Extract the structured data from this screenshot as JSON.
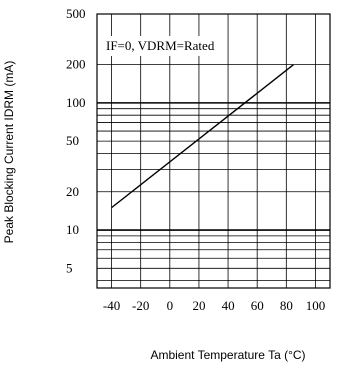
{
  "chart_data": {
    "type": "line",
    "y_scale": "log",
    "grid": true,
    "xlabel": "Ambient Temperature Ta (°C)",
    "ylabel": "Peak Blocking Current IDRM (mA)",
    "xlim": [
      -50,
      110
    ],
    "ylim": [
      3.5,
      500
    ],
    "x_ticks": [
      -40,
      -20,
      0,
      20,
      40,
      60,
      80,
      100
    ],
    "x_tick_labels": [
      "-40",
      "-20",
      "0",
      "20",
      "40",
      "60",
      "80",
      "100"
    ],
    "y_labeled_ticks": [
      5,
      10,
      20,
      50,
      100,
      200,
      500
    ],
    "y_tick_labels": [
      "5",
      "10",
      "20",
      "50",
      "100",
      "200",
      "500"
    ],
    "y_minor_lines": [
      4,
      6,
      7,
      8,
      9,
      30,
      40,
      60,
      70,
      80,
      90
    ],
    "annotation": "IF=0, VDRM=Rated",
    "series": [
      {
        "x": [
          -40,
          85
        ],
        "y": [
          15,
          200
        ]
      }
    ]
  }
}
